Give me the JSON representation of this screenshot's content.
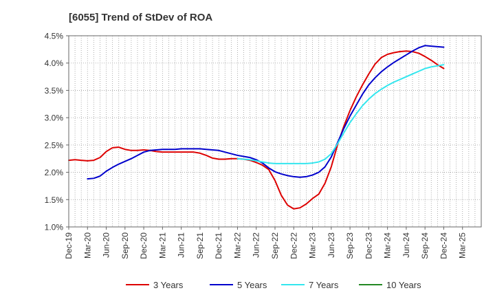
{
  "chart_data": {
    "type": "line",
    "title": "[6055]  Trend of StDev of ROA",
    "xlabel": "",
    "ylabel": "",
    "ylim": [
      1.0,
      4.5
    ],
    "yticks": [
      "1.0%",
      "1.5%",
      "2.0%",
      "2.5%",
      "3.0%",
      "3.5%",
      "4.0%",
      "4.5%"
    ],
    "ytick_values": [
      1.0,
      1.5,
      2.0,
      2.5,
      3.0,
      3.5,
      4.0,
      4.5
    ],
    "x_range": [
      0,
      66
    ],
    "x_ticks": [
      "Dec-19",
      "Mar-20",
      "Jun-20",
      "Sep-20",
      "Dec-20",
      "Mar-21",
      "Jun-21",
      "Sep-21",
      "Dec-21",
      "Mar-22",
      "Jun-22",
      "Sep-22",
      "Dec-22",
      "Mar-23",
      "Jun-23",
      "Sep-23",
      "Dec-23",
      "Mar-24",
      "Jun-24",
      "Sep-24",
      "Dec-24",
      "Mar-25"
    ],
    "x_unit": "months since Dec-19",
    "grid": true,
    "legend_position": "bottom",
    "series": [
      {
        "name": "3 Years",
        "color": "#dd0000",
        "x": [
          0,
          1,
          2,
          3,
          4,
          5,
          6,
          7,
          8,
          9,
          10,
          11,
          12,
          13,
          14,
          15,
          16,
          17,
          18,
          19,
          20,
          21,
          22,
          23,
          24,
          25,
          26,
          27,
          28,
          29,
          30,
          31,
          32,
          33,
          34,
          35,
          36,
          37,
          38,
          39,
          40,
          41,
          42,
          43,
          44,
          45,
          46,
          47,
          48,
          49,
          50,
          51,
          52,
          53,
          54,
          55,
          56,
          57,
          58,
          59,
          60
        ],
        "y": [
          2.22,
          2.23,
          2.22,
          2.21,
          2.22,
          2.27,
          2.38,
          2.45,
          2.46,
          2.42,
          2.4,
          2.4,
          2.41,
          2.4,
          2.38,
          2.37,
          2.37,
          2.37,
          2.37,
          2.37,
          2.37,
          2.35,
          2.31,
          2.26,
          2.24,
          2.24,
          2.25,
          2.25,
          2.24,
          2.22,
          2.18,
          2.13,
          2.05,
          1.85,
          1.58,
          1.4,
          1.33,
          1.35,
          1.42,
          1.52,
          1.6,
          1.8,
          2.1,
          2.5,
          2.84,
          3.13,
          3.38,
          3.6,
          3.8,
          3.98,
          4.1,
          4.16,
          4.19,
          4.21,
          4.22,
          4.21,
          4.18,
          4.12,
          4.05,
          3.97,
          3.9
        ]
      },
      {
        "name": "5 Years",
        "color": "#0000cc",
        "x": [
          3,
          4,
          5,
          6,
          7,
          8,
          9,
          10,
          11,
          12,
          13,
          14,
          15,
          16,
          17,
          18,
          19,
          20,
          21,
          22,
          23,
          24,
          25,
          26,
          27,
          28,
          29,
          30,
          31,
          32,
          33,
          34,
          35,
          36,
          37,
          38,
          39,
          40,
          41,
          42,
          43,
          44,
          45,
          46,
          47,
          48,
          49,
          50,
          51,
          52,
          53,
          54,
          55,
          56,
          57,
          58,
          59,
          60
        ],
        "y": [
          1.88,
          1.89,
          1.93,
          2.02,
          2.09,
          2.15,
          2.2,
          2.25,
          2.31,
          2.37,
          2.4,
          2.41,
          2.42,
          2.42,
          2.42,
          2.43,
          2.43,
          2.43,
          2.43,
          2.42,
          2.41,
          2.4,
          2.37,
          2.34,
          2.31,
          2.29,
          2.27,
          2.23,
          2.17,
          2.08,
          2.01,
          1.97,
          1.94,
          1.92,
          1.91,
          1.92,
          1.95,
          2.0,
          2.1,
          2.28,
          2.54,
          2.8,
          3.03,
          3.23,
          3.43,
          3.6,
          3.73,
          3.84,
          3.93,
          4.01,
          4.08,
          4.15,
          4.22,
          4.28,
          4.32,
          4.31,
          4.3,
          4.29
        ]
      },
      {
        "name": "7 Years",
        "color": "#33e6ee",
        "x": [
          27,
          28,
          29,
          30,
          31,
          32,
          33,
          34,
          35,
          36,
          37,
          38,
          39,
          40,
          41,
          42,
          43,
          44,
          45,
          46,
          47,
          48,
          49,
          50,
          51,
          52,
          53,
          54,
          55,
          56,
          57,
          58,
          59,
          60
        ],
        "y": [
          2.25,
          2.24,
          2.23,
          2.21,
          2.19,
          2.17,
          2.16,
          2.16,
          2.16,
          2.16,
          2.16,
          2.16,
          2.17,
          2.19,
          2.24,
          2.34,
          2.52,
          2.72,
          2.91,
          3.07,
          3.22,
          3.34,
          3.44,
          3.52,
          3.59,
          3.65,
          3.7,
          3.75,
          3.8,
          3.85,
          3.9,
          3.93,
          3.95,
          3.97
        ]
      },
      {
        "name": "10 Years",
        "color": "#228822",
        "x": [],
        "y": []
      }
    ]
  }
}
